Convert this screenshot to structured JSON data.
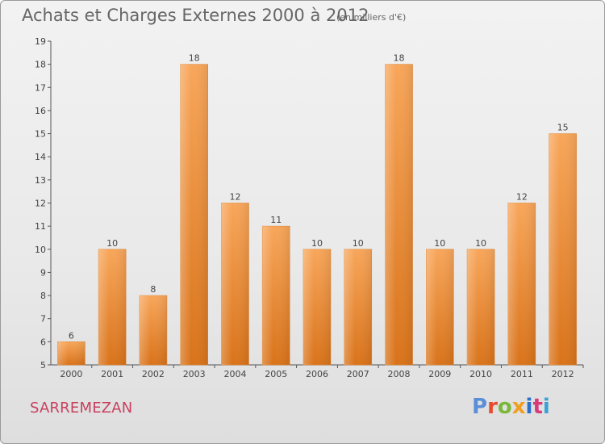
{
  "title": "Achats et Charges Externes 2000 à 2012",
  "subtitle": "(en milliers d'€)",
  "commune": "SARREMEZAN",
  "logo": "Proxiti",
  "colors": {
    "bar_top": "#f8a65a",
    "bar_bottom": "#d9731a",
    "title": "#666666",
    "commune": "#c8405e",
    "logo_letters": [
      "#5a8fd8",
      "#e84a2e",
      "#7ab83a",
      "#f0a020",
      "#2a70c8",
      "#d83a7a",
      "#3aa0d8"
    ]
  },
  "chart_data": {
    "type": "bar",
    "categories": [
      "2000",
      "2001",
      "2002",
      "2003",
      "2004",
      "2005",
      "2006",
      "2007",
      "2008",
      "2009",
      "2010",
      "2011",
      "2012"
    ],
    "values": [
      6,
      10,
      8,
      18,
      12,
      11,
      10,
      10,
      18,
      10,
      10,
      12,
      15
    ],
    "title": "Achats et Charges Externes 2000 à 2012",
    "xlabel": "",
    "ylabel": "",
    "ylim": [
      5,
      19
    ],
    "yticks": [
      5,
      6,
      7,
      8,
      9,
      10,
      11,
      12,
      13,
      14,
      15,
      16,
      17,
      18,
      19
    ],
    "grid": false,
    "data_labels": true
  }
}
